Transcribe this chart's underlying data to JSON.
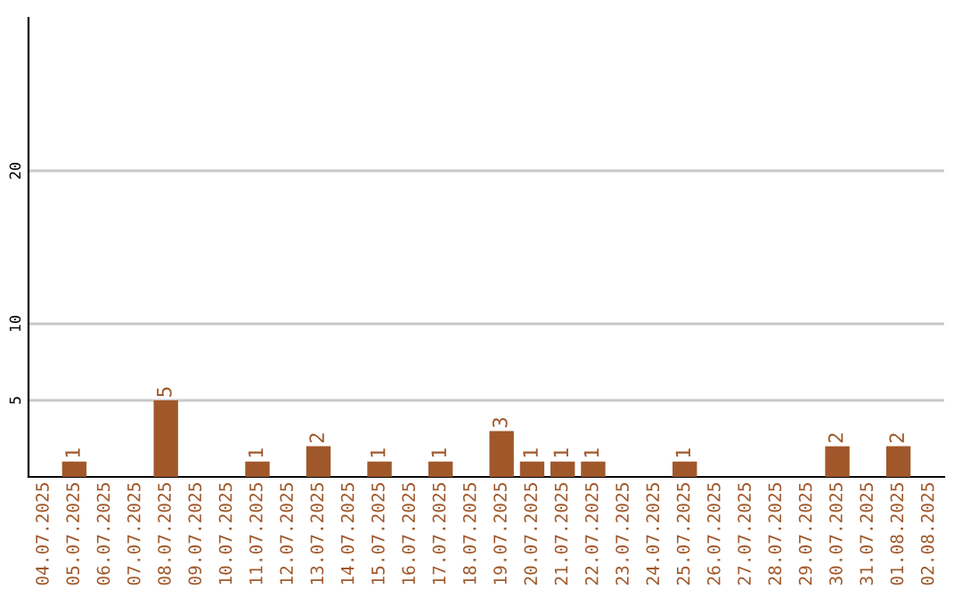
{
  "chart_data": {
    "type": "bar",
    "categories": [
      "04.07.2025",
      "05.07.2025",
      "06.07.2025",
      "07.07.2025",
      "08.07.2025",
      "09.07.2025",
      "10.07.2025",
      "11.07.2025",
      "12.07.2025",
      "13.07.2025",
      "14.07.2025",
      "15.07.2025",
      "16.07.2025",
      "17.07.2025",
      "18.07.2025",
      "19.07.2025",
      "20.07.2025",
      "21.07.2025",
      "22.07.2025",
      "23.07.2025",
      "24.07.2025",
      "25.07.2025",
      "26.07.2025",
      "27.07.2025",
      "28.07.2025",
      "29.07.2025",
      "30.07.2025",
      "31.07.2025",
      "01.08.2025",
      "02.08.2025"
    ],
    "values": [
      0,
      1,
      0,
      0,
      5,
      0,
      0,
      1,
      0,
      2,
      0,
      1,
      0,
      1,
      0,
      3,
      1,
      1,
      1,
      0,
      0,
      1,
      0,
      0,
      0,
      0,
      2,
      0,
      2,
      0
    ],
    "value_labels": [
      null,
      "1",
      null,
      null,
      "5",
      null,
      null,
      "1",
      null,
      "2",
      null,
      "1",
      null,
      "1",
      null,
      "3",
      "1",
      "1",
      "1",
      null,
      null,
      "1",
      null,
      null,
      null,
      null,
      "2",
      null,
      "2",
      null
    ],
    "color": "#a0582a",
    "ylim": [
      0,
      30
    ],
    "yticks": [
      5,
      10,
      20
    ],
    "grid": "y"
  }
}
